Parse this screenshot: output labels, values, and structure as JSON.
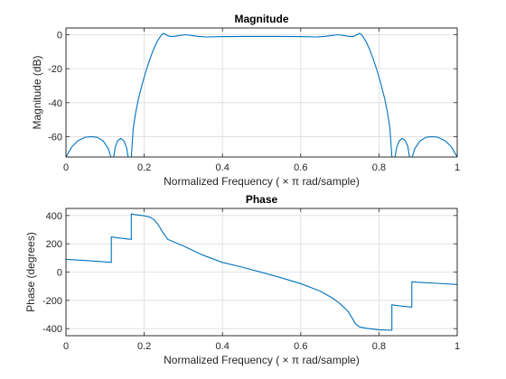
{
  "chart_data": [
    {
      "type": "line",
      "title": "Magnitude",
      "xlabel": "Normalized  Frequency    ( × π  rad/sample)",
      "ylabel": "Magnitude (dB)",
      "xlim": [
        0,
        1
      ],
      "ylim": [
        -72,
        4
      ],
      "xticks": [
        0,
        0.2,
        0.4,
        0.6,
        0.8,
        1
      ],
      "yticks": [
        0,
        -20,
        -40,
        -60
      ],
      "xtick_labels": [
        "0",
        "0.2",
        "0.4",
        "0.6",
        "0.8",
        "1"
      ],
      "ytick_labels": [
        "0",
        "-20",
        "-40",
        "-60"
      ],
      "grid": true,
      "color": "#0072BD",
      "segments": [
        [
          [
            0.0,
            -72
          ],
          [
            0.005,
            -70
          ],
          [
            0.015,
            -66
          ],
          [
            0.03,
            -62.5
          ],
          [
            0.05,
            -60.3
          ],
          [
            0.065,
            -60
          ],
          [
            0.08,
            -60.4
          ],
          [
            0.095,
            -62.5
          ],
          [
            0.108,
            -67
          ],
          [
            0.115,
            -72
          ]
        ],
        [
          [
            0.122,
            -72
          ],
          [
            0.126,
            -66
          ],
          [
            0.132,
            -62.5
          ],
          [
            0.14,
            -61
          ],
          [
            0.148,
            -62.5
          ],
          [
            0.155,
            -66.5
          ],
          [
            0.159,
            -72
          ]
        ],
        [
          [
            0.167,
            -72
          ],
          [
            0.172,
            -55
          ],
          [
            0.178,
            -46
          ],
          [
            0.185,
            -38
          ],
          [
            0.195,
            -29
          ],
          [
            0.205,
            -21
          ],
          [
            0.215,
            -14
          ],
          [
            0.225,
            -8
          ],
          [
            0.233,
            -4
          ],
          [
            0.24,
            -1.5
          ],
          [
            0.245,
            0.2
          ],
          [
            0.25,
            0.8
          ],
          [
            0.255,
            0.2
          ],
          [
            0.265,
            -1
          ],
          [
            0.275,
            -1
          ],
          [
            0.29,
            -0.4
          ],
          [
            0.305,
            0
          ],
          [
            0.32,
            -0.4
          ],
          [
            0.34,
            -1
          ],
          [
            0.36,
            -1.3
          ],
          [
            0.4,
            -1.1
          ],
          [
            0.45,
            -1
          ],
          [
            0.5,
            -1
          ],
          [
            0.55,
            -1
          ],
          [
            0.6,
            -1.1
          ],
          [
            0.64,
            -1.3
          ],
          [
            0.66,
            -1
          ],
          [
            0.68,
            -0.4
          ],
          [
            0.695,
            0
          ],
          [
            0.71,
            -0.4
          ],
          [
            0.725,
            -1
          ],
          [
            0.735,
            -1
          ],
          [
            0.745,
            0.2
          ],
          [
            0.75,
            0.8
          ],
          [
            0.755,
            0.2
          ],
          [
            0.76,
            -1.5
          ],
          [
            0.767,
            -4
          ],
          [
            0.775,
            -8
          ],
          [
            0.785,
            -14
          ],
          [
            0.795,
            -21
          ],
          [
            0.805,
            -29
          ],
          [
            0.815,
            -38
          ],
          [
            0.822,
            -46
          ],
          [
            0.828,
            -55
          ],
          [
            0.833,
            -72
          ]
        ],
        [
          [
            0.841,
            -72
          ],
          [
            0.845,
            -66.5
          ],
          [
            0.852,
            -62.5
          ],
          [
            0.86,
            -61
          ],
          [
            0.868,
            -62.5
          ],
          [
            0.874,
            -66
          ],
          [
            0.878,
            -72
          ]
        ],
        [
          [
            0.885,
            -72
          ],
          [
            0.892,
            -67
          ],
          [
            0.905,
            -62.5
          ],
          [
            0.92,
            -60.4
          ],
          [
            0.935,
            -60
          ],
          [
            0.95,
            -60.3
          ],
          [
            0.97,
            -62.5
          ],
          [
            0.985,
            -66
          ],
          [
            0.995,
            -70
          ],
          [
            1.0,
            -72
          ]
        ]
      ]
    },
    {
      "type": "line",
      "title": "Phase",
      "xlabel": "Normalized  Frequency    ( × π  rad/sample)",
      "ylabel": "Phase (degrees)",
      "xlim": [
        0,
        1
      ],
      "ylim": [
        -450,
        450
      ],
      "xticks": [
        0,
        0.2,
        0.4,
        0.6,
        0.8,
        1
      ],
      "yticks": [
        400,
        200,
        0,
        -200,
        -400
      ],
      "xtick_labels": [
        "0",
        "0.2",
        "0.4",
        "0.6",
        "0.8",
        "1"
      ],
      "ytick_labels": [
        "400",
        "200",
        "0",
        "-200",
        "-400"
      ],
      "grid": true,
      "color": "#0072BD",
      "points": [
        [
          0.0,
          90
        ],
        [
          0.05,
          82
        ],
        [
          0.1,
          72
        ],
        [
          0.116,
          68
        ],
        [
          0.116,
          248
        ],
        [
          0.13,
          243
        ],
        [
          0.165,
          232
        ],
        [
          0.167,
          232
        ],
        [
          0.167,
          412
        ],
        [
          0.18,
          405
        ],
        [
          0.2,
          398
        ],
        [
          0.215,
          388
        ],
        [
          0.225,
          370
        ],
        [
          0.235,
          338
        ],
        [
          0.245,
          292
        ],
        [
          0.26,
          232
        ],
        [
          0.3,
          185
        ],
        [
          0.35,
          120
        ],
        [
          0.4,
          68
        ],
        [
          0.45,
          35
        ],
        [
          0.5,
          -2
        ],
        [
          0.55,
          -40
        ],
        [
          0.6,
          -82
        ],
        [
          0.65,
          -135
        ],
        [
          0.68,
          -182
        ],
        [
          0.7,
          -222
        ],
        [
          0.72,
          -275
        ],
        [
          0.73,
          -318
        ],
        [
          0.74,
          -365
        ],
        [
          0.75,
          -388
        ],
        [
          0.77,
          -398
        ],
        [
          0.8,
          -408
        ],
        [
          0.833,
          -412
        ],
        [
          0.833,
          -232
        ],
        [
          0.85,
          -238
        ],
        [
          0.884,
          -248
        ],
        [
          0.884,
          -68
        ],
        [
          0.9,
          -72
        ],
        [
          0.95,
          -80
        ],
        [
          1.0,
          -88
        ]
      ]
    }
  ]
}
